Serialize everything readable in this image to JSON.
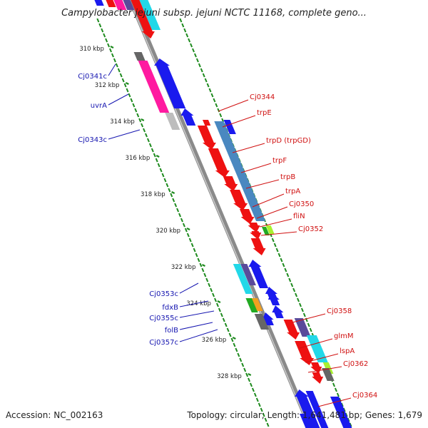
{
  "title": "Campylobacter jejuni subsp. jejuni NCTC 11168, complete geno...",
  "footer": {
    "accession": "Accession: NC_002163",
    "summary": "Topology: circular; Length: 1,641,481 bp; Genes: 1,679"
  },
  "ticks": [
    "310 kbp",
    "312 kbp",
    "314 kbp",
    "316 kbp",
    "318 kbp",
    "320 kbp",
    "322 kbp",
    "324 kbp",
    "326 kbp",
    "328 kbp"
  ],
  "left_labels": [
    "Cj0341c",
    "uvrA",
    "Cj0343c",
    "Cj0353c",
    "fdxB",
    "Cj0355c",
    "folB",
    "Cj0357c"
  ],
  "right_labels": [
    "Cj0344",
    "trpE",
    "trpD (trpGD)",
    "trpF",
    "trpB",
    "trpA",
    "Cj0350",
    "fliN",
    "Cj0352",
    "Cj0358",
    "glmM",
    "lspA",
    "Cj0362",
    "Cj0364"
  ],
  "colors": {
    "red": "#ee1111",
    "blue": "#1a1aee",
    "magenta": "#ff1aa0",
    "cyan": "#22d8e8",
    "navy": "#5a4a9a",
    "steel": "#4a88c0",
    "gray": "#666666",
    "light_gray": "#bdbdbd",
    "lime": "#a8f030",
    "green": "#22aa22",
    "orange": "#f0a020"
  }
}
